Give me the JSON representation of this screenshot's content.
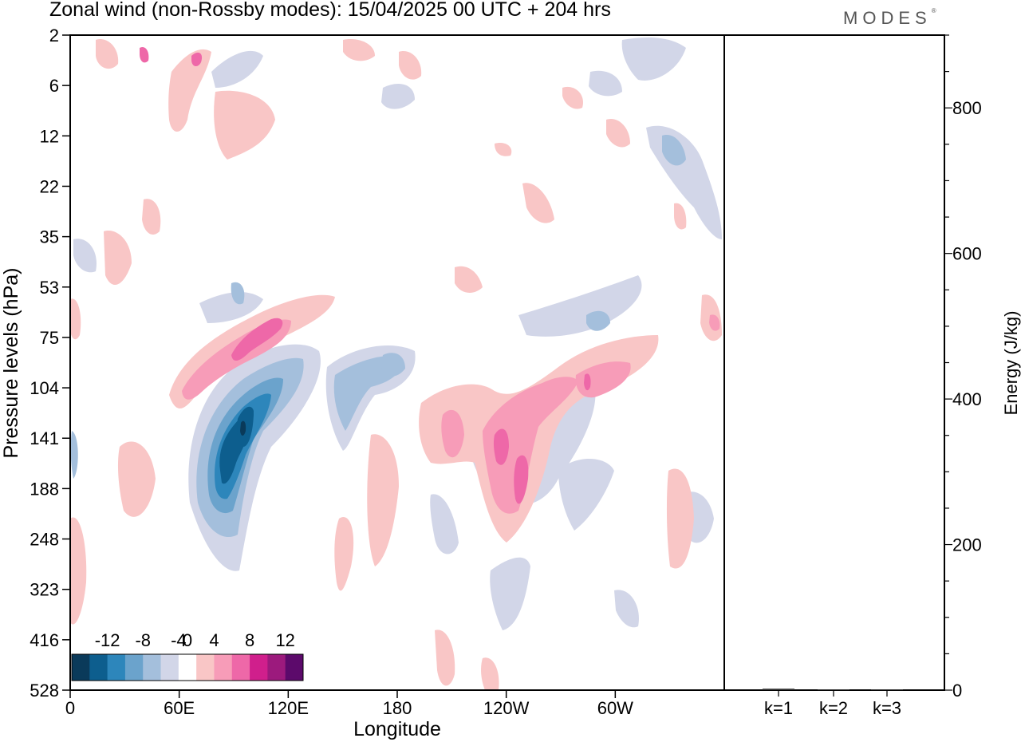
{
  "title": "Zonal wind (non-Rossby modes):  15/04/2025  00 UTC  + 204 hrs",
  "logo": "MODES",
  "chart_data": [
    {
      "type": "heatmap",
      "xlabel": "Longitude",
      "ylabel": "Pressure levels (hPa)",
      "x_ticks": [
        "0",
        "60E",
        "120E",
        "180",
        "120W",
        "60W"
      ],
      "x_range_deg": [
        0,
        360
      ],
      "y_ticks": [
        "2",
        "6",
        "12",
        "22",
        "35",
        "53",
        "75",
        "104",
        "141",
        "188",
        "248",
        "323",
        "416",
        "528"
      ],
      "y_axis": "categorical pressure levels, 2 hPa at top to 528 hPa at bottom",
      "colorbar": {
        "tick_labels": [
          "-12",
          "-8",
          "-4",
          "0",
          "4",
          "8",
          "12"
        ],
        "levels": [
          -14,
          -12,
          -10,
          -8,
          -6,
          -4,
          -2,
          2,
          4,
          6,
          8,
          10,
          12,
          14
        ],
        "colors": [
          "#0a3a5a",
          "#0d5e8e",
          "#2d86bb",
          "#6ba3cc",
          "#a4bfdc",
          "#d2d6e8",
          "#ffffff",
          "#f9c6c6",
          "#f79cb8",
          "#ee68a8",
          "#d01f8c",
          "#9c1a7d",
          "#5c0a6b"
        ]
      },
      "features": [
        {
          "label": "negative core",
          "lon": 97,
          "pressure": "141",
          "value": -14
        },
        {
          "label": "positive band",
          "lon": 92,
          "pressure": "75",
          "value": 8
        },
        {
          "label": "positive core",
          "lon": 237,
          "pressure": "141",
          "value": 10
        },
        {
          "label": "positive band",
          "lon": 315,
          "pressure": "104",
          "value": 8
        },
        {
          "label": "negative band",
          "lon": 167,
          "pressure": "104",
          "value": -6
        }
      ]
    },
    {
      "type": "bar",
      "ylabel": "Energy (J/kg)",
      "categories": [
        "k=1",
        "k=2",
        "k=3"
      ],
      "values": [
        2,
        1,
        1
      ],
      "ylim": [
        0,
        900
      ],
      "y_ticks": [
        "0",
        "200",
        "400",
        "600",
        "800"
      ]
    }
  ]
}
